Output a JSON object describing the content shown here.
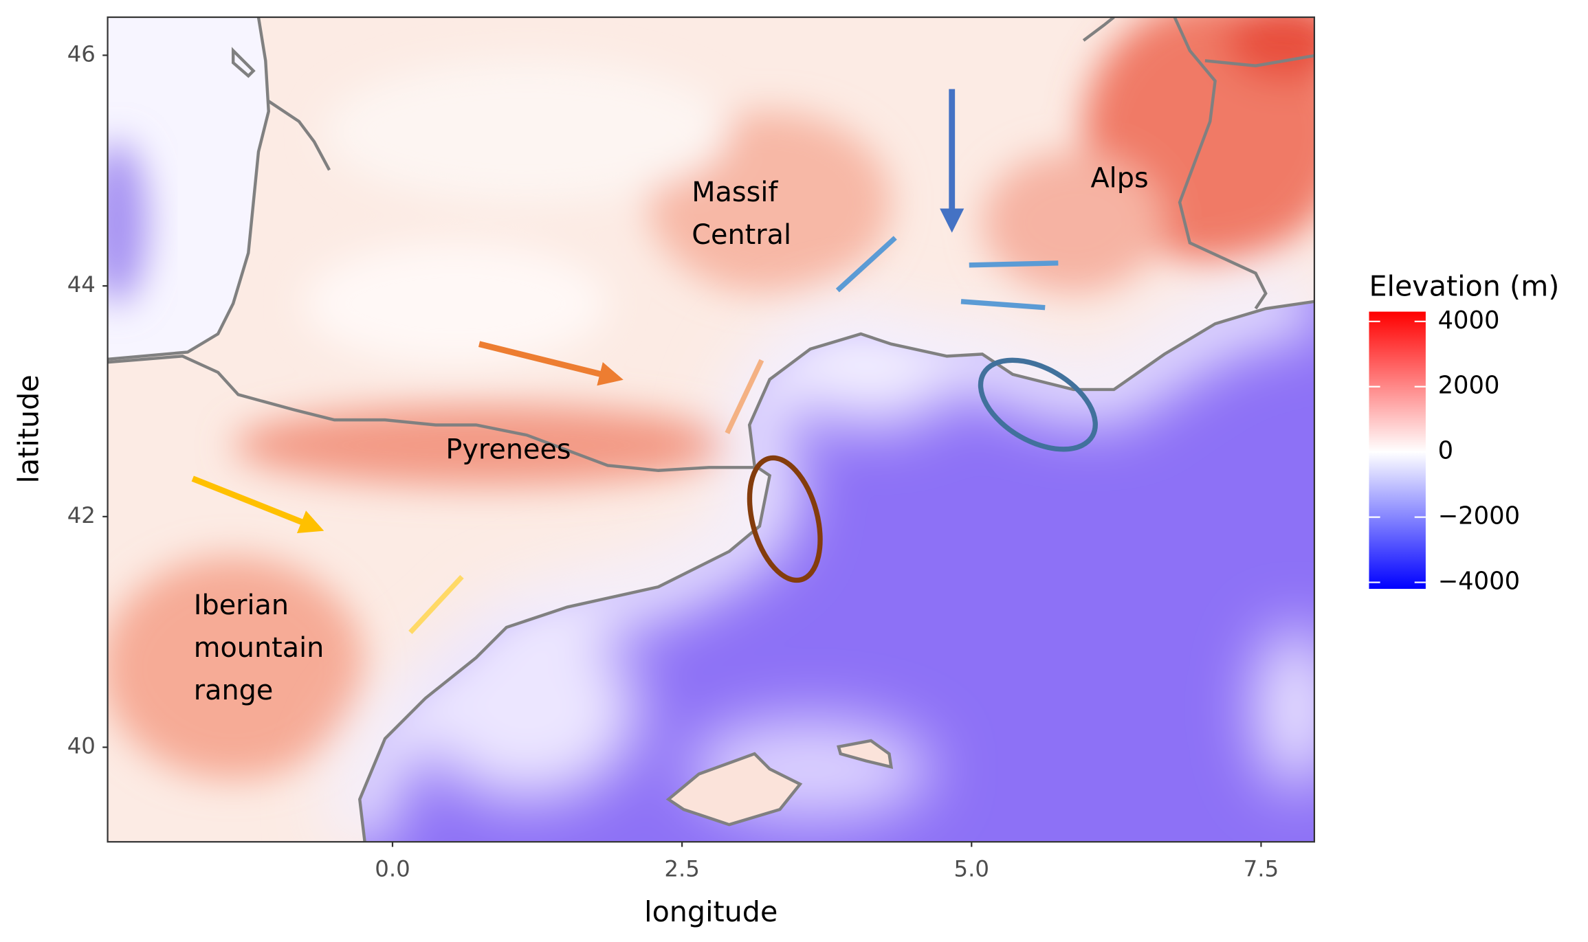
{
  "chart_data": {
    "type": "map",
    "xlabel": "longitude",
    "ylabel": "latitude",
    "xlim": [
      -2.46,
      7.96
    ],
    "ylim": [
      39.18,
      46.33
    ],
    "xticks": [
      {
        "value": 0,
        "label": "0.0"
      },
      2.5,
      {
        "value": 5,
        "label": "5.0"
      },
      7.5
    ],
    "yticks": [
      40,
      42,
      44,
      46
    ],
    "grid": false,
    "legend": {
      "title": "Elevation (m)",
      "clim": [
        -4200,
        4300
      ],
      "ticks": [
        4000,
        2000,
        0,
        {
          "value": -2000,
          "label": "−2000"
        },
        {
          "value": -4000,
          "label": "−4000"
        }
      ],
      "colorscale": {
        "low": "#0000ff",
        "mid": "#ffffff",
        "high": "#ff0000"
      }
    },
    "labels": [
      {
        "text": [
          "Massif",
          "Central"
        ]
      },
      {
        "text": [
          "Alps"
        ]
      },
      {
        "text": [
          "Pyrenees"
        ]
      },
      {
        "text": [
          "Iberian",
          "mountain",
          "range"
        ]
      }
    ]
  }
}
